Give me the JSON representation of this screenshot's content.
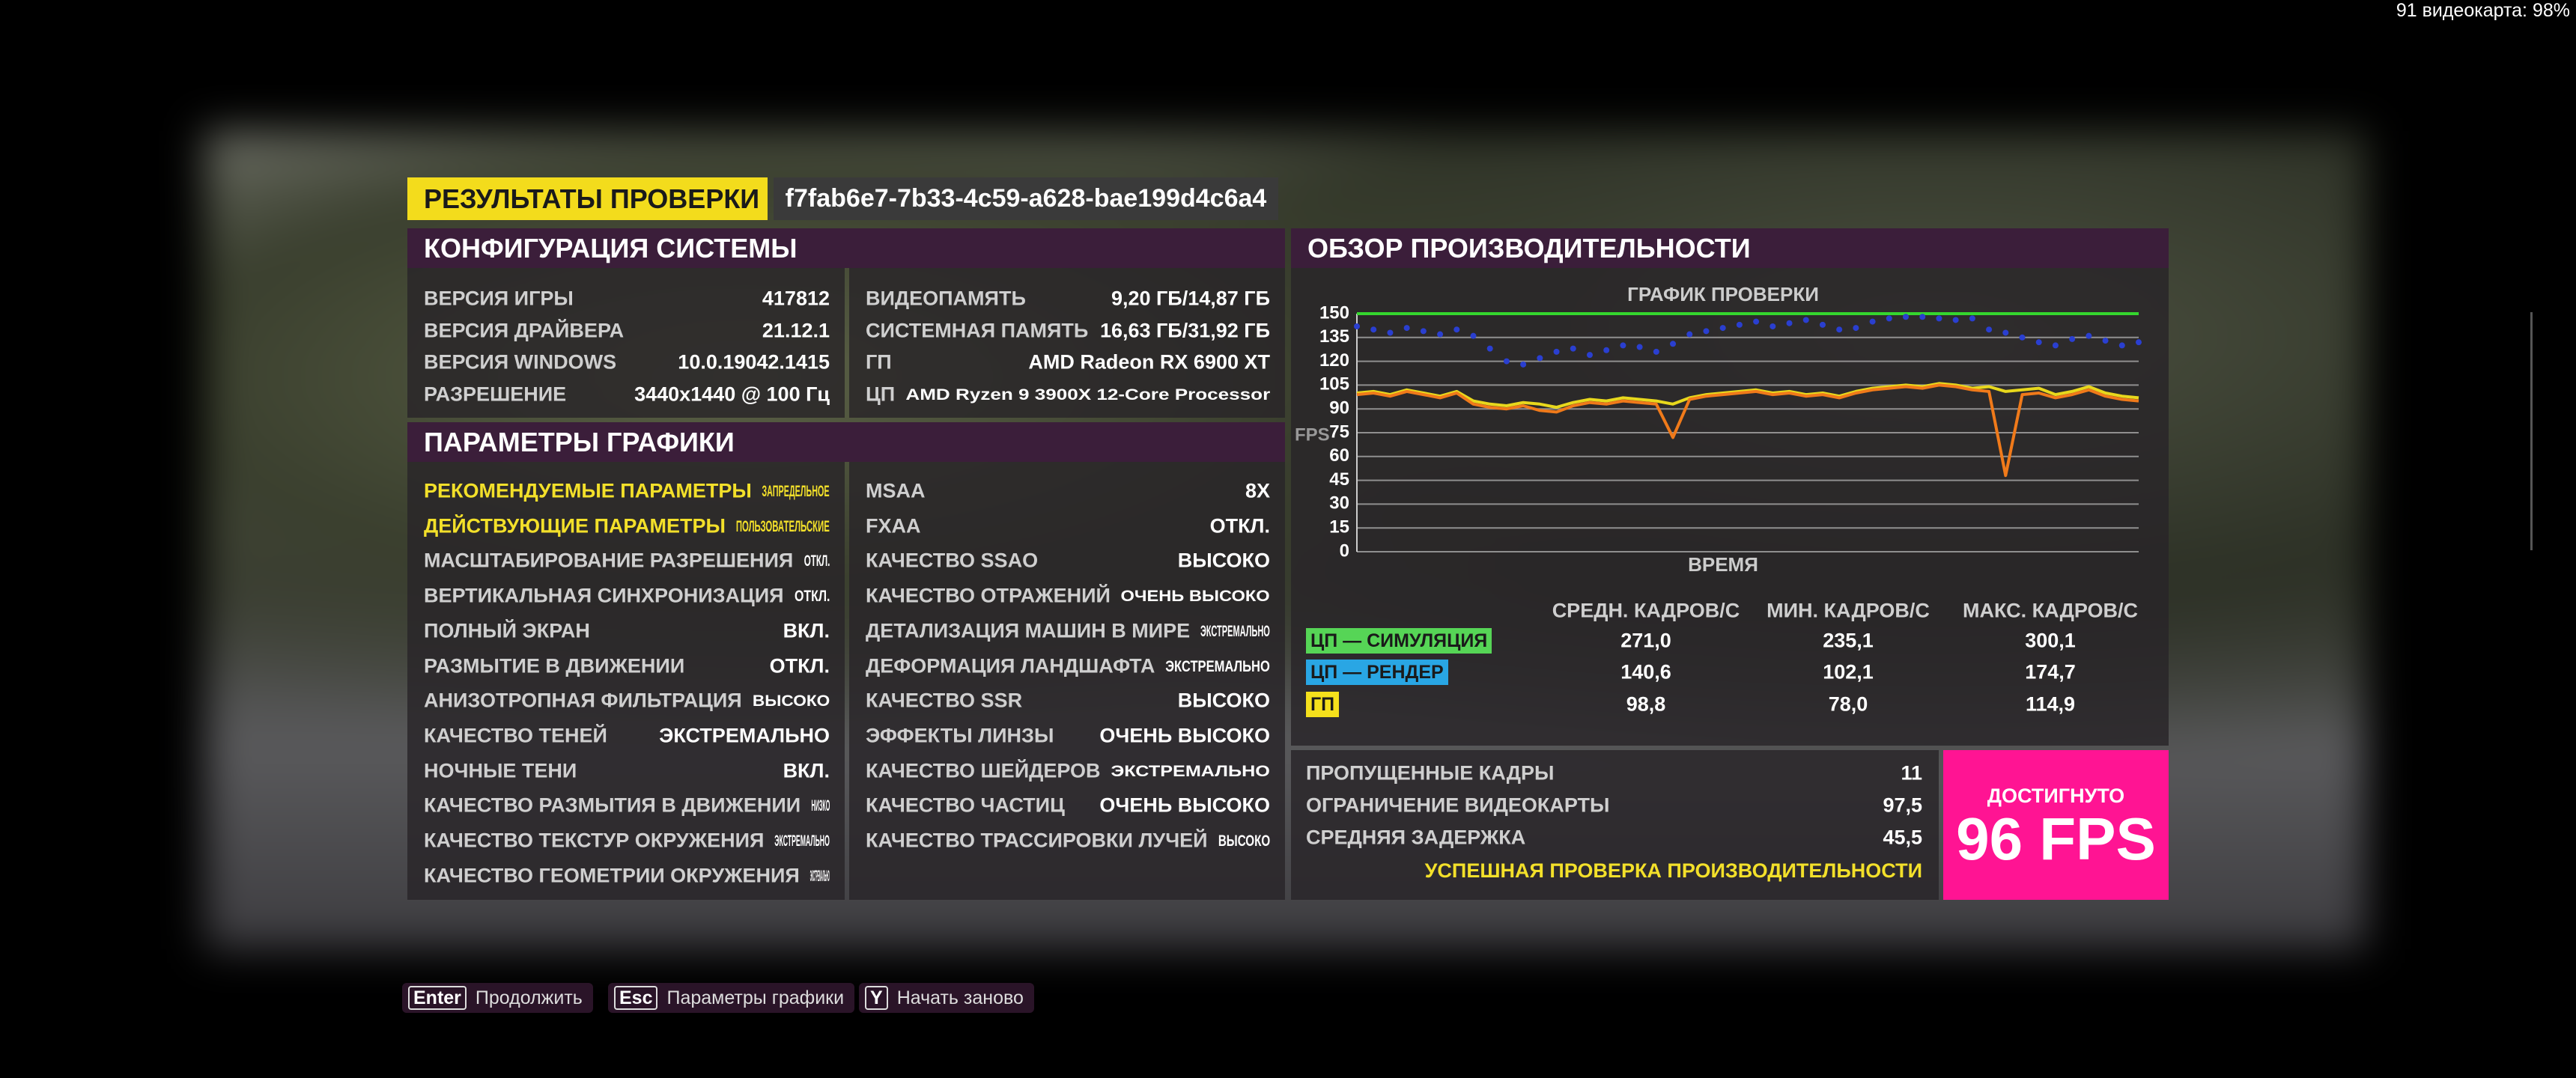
{
  "top_overlay": "91 видеокарта: 98%",
  "header": {
    "title": "РЕЗУЛЬТАТЫ ПРОВЕРКИ",
    "id": "f7fab6e7-7b33-4c59-a628-bae199d4c6a4"
  },
  "system_config": {
    "title": "КОНФИГУРАЦИЯ СИСТЕМЫ",
    "left": [
      [
        "ВЕРСИЯ ИГРЫ",
        "417812"
      ],
      [
        "ВЕРСИЯ ДРАЙВЕРА",
        "21.12.1"
      ],
      [
        "ВЕРСИЯ WINDOWS",
        "10.0.19042.1415"
      ],
      [
        "РАЗРЕШЕНИЕ",
        "3440x1440 @ 100 Гц"
      ]
    ],
    "right": [
      [
        "ВИДЕОПАМЯТЬ",
        "9,20 ГБ/14,87 ГБ"
      ],
      [
        "СИСТЕМНАЯ ПАМЯТЬ",
        "16,63 ГБ/31,92 ГБ"
      ],
      [
        "ГП",
        "AMD Radeon RX 6900 XT"
      ],
      [
        "ЦП",
        "AMD Ryzen 9 3900X 12-Core Processor"
      ]
    ]
  },
  "graphics": {
    "title": "ПАРАМЕТРЫ ГРАФИКИ",
    "left": [
      [
        "РЕКОМЕНДУЕМЫЕ ПАРАМЕТРЫ",
        "ЗАПРЕДЕЛЬНОЕ"
      ],
      [
        "ДЕЙСТВУЮЩИЕ ПАРАМЕТРЫ",
        "ПОЛЬЗОВАТЕЛЬСКИЕ"
      ],
      [
        "МАСШТАБИРОВАНИЕ РАЗРЕШЕНИЯ",
        "ОТКЛ."
      ],
      [
        "ВЕРТИКАЛЬНАЯ СИНХРОНИЗАЦИЯ",
        "ОТКЛ."
      ],
      [
        "ПОЛНЫЙ ЭКРАН",
        "ВКЛ."
      ],
      [
        "РАЗМЫТИЕ В ДВИЖЕНИИ",
        "ОТКЛ."
      ],
      [
        "АНИЗОТРОПНАЯ ФИЛЬТРАЦИЯ",
        "ВЫСОКО"
      ],
      [
        "КАЧЕСТВО ТЕНЕЙ",
        "ЭКСТРЕМАЛЬНО"
      ],
      [
        "НОЧНЫЕ ТЕНИ",
        "ВКЛ."
      ],
      [
        "КАЧЕСТВО РАЗМЫТИЯ В ДВИЖЕНИИ",
        "НИЗКО"
      ],
      [
        "КАЧЕСТВО ТЕКСТУР ОКРУЖЕНИЯ",
        "ЭКСТРЕМАЛЬНО"
      ],
      [
        "КАЧЕСТВО ГЕОМЕТРИИ ОКРУЖЕНИЯ",
        "ЭКСТРЕМАЛЬНО"
      ]
    ],
    "right": [
      [
        "MSAA",
        "8X"
      ],
      [
        "FXAA",
        "ОТКЛ."
      ],
      [
        "КАЧЕСТВО SSAO",
        "ВЫСОКО"
      ],
      [
        "КАЧЕСТВО ОТРАЖЕНИЙ",
        "ОЧЕНЬ ВЫСОКО"
      ],
      [
        "ДЕТАЛИЗАЦИЯ МАШИН В МИРЕ",
        "ЭКСТРЕМАЛЬНО"
      ],
      [
        "ДЕФОРМАЦИЯ ЛАНДШАФТА",
        "ЭКСТРЕМАЛЬНО"
      ],
      [
        "КАЧЕСТВО SSR",
        "ВЫСОКО"
      ],
      [
        "ЭФФЕКТЫ ЛИНЗЫ",
        "ОЧЕНЬ ВЫСОКО"
      ],
      [
        "КАЧЕСТВО ШЕЙДЕРОВ",
        "ЭКСТРЕМАЛЬНО"
      ],
      [
        "КАЧЕСТВО ЧАСТИЦ",
        "ОЧЕНЬ ВЫСОКО"
      ],
      [
        "КАЧЕСТВО ТРАССИРОВКИ ЛУЧЕЙ",
        "ВЫСОКО"
      ]
    ]
  },
  "performance": {
    "title": "ОБЗОР ПРОИЗВОДИТЕЛЬНОСТИ",
    "stats": {
      "columns": [
        "СРЕДН. КАДРОВ/С",
        "МИН. КАДРОВ/С",
        "МАКС. КАДРОВ/С"
      ],
      "rows": [
        {
          "label": "ЦП — СИМУЛЯЦИЯ",
          "values": [
            "271,0",
            "235,1",
            "300,1"
          ]
        },
        {
          "label": "ЦП — РЕНДЕР",
          "values": [
            "140,6",
            "102,1",
            "174,7"
          ]
        },
        {
          "label": "ГП",
          "values": [
            "98,8",
            "78,0",
            "114,9"
          ]
        }
      ]
    },
    "summary": [
      [
        "ПРОПУЩЕННЫЕ КАДРЫ",
        "11"
      ],
      [
        "ОГРАНИЧЕНИЕ ВИДЕОКАРТЫ",
        "97,5"
      ],
      [
        "СРЕДНЯЯ ЗАДЕРЖКА",
        "45,5"
      ]
    ],
    "status": "УСПЕШНАЯ ПРОВЕРКА ПРОИЗВОДИТЕЛЬНОСТИ",
    "result": {
      "label": "ДОСТИГНУТО",
      "value": "96 FPS"
    }
  },
  "chart_data": {
    "type": "line",
    "title": "ГРАФИК ПРОВЕРКИ",
    "x_label": "ВРЕМЯ",
    "y_label": "FPS",
    "ylim": [
      0,
      150
    ],
    "yticks": [
      0,
      15,
      30,
      45,
      60,
      75,
      90,
      105,
      120,
      135,
      150
    ],
    "grid": true,
    "series": [
      {
        "name": "ЦП — СИМУЛЯЦИЯ",
        "color": "#35d62e",
        "values": [
          150,
          150,
          150,
          150,
          150,
          150,
          150,
          150,
          150,
          150,
          150,
          150,
          150,
          150,
          150,
          150,
          150,
          150,
          150,
          150,
          150,
          150,
          150,
          150,
          150,
          150,
          150,
          150,
          150,
          150,
          150,
          150,
          150,
          150,
          150,
          150,
          150,
          150,
          150,
          150,
          150,
          150,
          150,
          150,
          150,
          150,
          150,
          150
        ]
      },
      {
        "name": "ЦП — РЕНДЕР",
        "color": "#2a3fd0",
        "marker": "dots",
        "values": [
          142,
          140,
          138,
          141,
          139,
          137,
          140,
          136,
          128,
          120,
          118,
          122,
          126,
          128,
          124,
          127,
          130,
          129,
          126,
          131,
          137,
          139,
          141,
          143,
          145,
          142,
          144,
          146,
          143,
          140,
          141,
          145,
          147,
          148,
          148,
          147,
          146,
          147,
          140,
          138,
          135,
          132,
          130,
          134,
          136,
          133,
          130,
          132
        ]
      },
      {
        "name": "ГП",
        "color": "#e8d81c",
        "values": [
          100,
          101,
          99,
          102,
          100,
          98,
          101,
          95,
          93,
          92,
          94,
          93,
          91,
          94,
          96,
          95,
          97,
          96,
          95,
          93,
          97,
          99,
          100,
          101,
          102,
          100,
          101,
          99,
          100,
          98,
          101,
          103,
          104,
          105,
          104,
          106,
          105,
          103,
          104,
          101,
          102,
          103,
          99,
          101,
          104,
          100,
          98,
          97
        ]
      },
      {
        "color": "#f07a1a",
        "values": [
          99,
          100,
          98,
          101,
          99,
          97,
          100,
          93,
          91,
          90,
          92,
          89,
          88,
          92,
          94,
          93,
          95,
          94,
          93,
          72,
          96,
          98,
          99,
          100,
          101,
          99,
          100,
          98,
          99,
          97,
          100,
          102,
          103,
          104,
          103,
          105,
          104,
          102,
          101,
          48,
          99,
          100,
          97,
          99,
          102,
          98,
          96,
          95
        ]
      }
    ]
  },
  "buttons": [
    {
      "key": "Enter",
      "label": "Продолжить"
    },
    {
      "key": "Esc",
      "label": "Параметры графики"
    },
    {
      "key": "Y",
      "label": "Начать заново"
    }
  ]
}
